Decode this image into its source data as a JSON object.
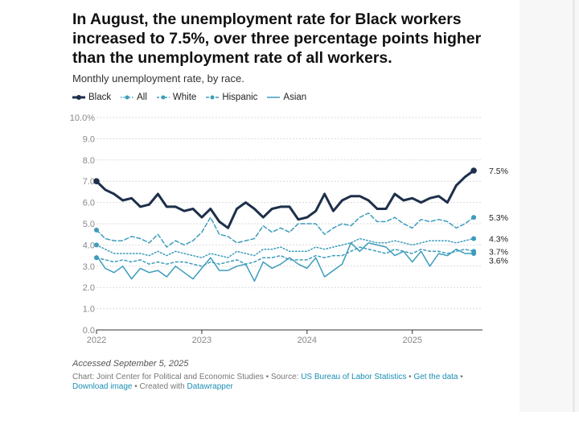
{
  "header": {
    "title": "In August, the unemployment rate for Black workers increased to 7.5%, over three percentage points higher than the unemployment rate of all workers.",
    "subtitle": "Monthly unemployment rate, by race."
  },
  "colors": {
    "Black": "#1d2f4a",
    "All": "#3d9cbc",
    "White": "#3d9cbc",
    "Hispanic": "#3d9cbc",
    "Asian": "#3d9cbc",
    "grid": "#d9d9d9",
    "axis": "#333333"
  },
  "chart_data": {
    "type": "line",
    "title": "Monthly unemployment rate, by race.",
    "xlabel": "",
    "ylabel": "",
    "ylim": [
      0,
      10
    ],
    "yticks": [
      "0.0",
      "1.0",
      "2.0",
      "3.0",
      "4.0",
      "5.0",
      "6.0",
      "7.0",
      "8.0",
      "9.0",
      "10.0%"
    ],
    "xticks": [
      {
        "label": "2022",
        "index": 0
      },
      {
        "label": "2023",
        "index": 12
      },
      {
        "label": "2024",
        "index": 24
      },
      {
        "label": "2025",
        "index": 36
      }
    ],
    "x_range": [
      0,
      44
    ],
    "legend_position": "top-left",
    "series": [
      {
        "name": "Black",
        "style": "solid-bold",
        "end_label": "7.5%",
        "values": [
          7.0,
          6.6,
          6.4,
          6.1,
          6.2,
          5.8,
          5.9,
          6.4,
          5.8,
          5.8,
          5.6,
          5.7,
          5.3,
          5.7,
          5.1,
          4.8,
          5.7,
          6.0,
          5.7,
          5.3,
          5.7,
          5.8,
          5.8,
          5.2,
          5.3,
          5.6,
          6.4,
          5.6,
          6.1,
          6.3,
          6.3,
          6.1,
          5.7,
          5.7,
          6.4,
          6.1,
          6.2,
          6.0,
          6.2,
          6.3,
          6.0,
          6.8,
          7.2,
          7.5
        ]
      },
      {
        "name": "All",
        "style": "dotted",
        "end_label": "4.3%",
        "values": [
          4.0,
          3.8,
          3.6,
          3.6,
          3.6,
          3.6,
          3.5,
          3.7,
          3.5,
          3.7,
          3.6,
          3.5,
          3.4,
          3.6,
          3.5,
          3.4,
          3.7,
          3.6,
          3.5,
          3.8,
          3.8,
          3.9,
          3.7,
          3.7,
          3.7,
          3.9,
          3.8,
          3.9,
          4.0,
          4.1,
          4.3,
          4.2,
          4.1,
          4.1,
          4.2,
          4.1,
          4.0,
          4.1,
          4.2,
          4.2,
          4.2,
          4.1,
          4.2,
          4.3
        ]
      },
      {
        "name": "White",
        "style": "dashed-small",
        "end_label": "3.7%",
        "values": [
          3.4,
          3.3,
          3.2,
          3.3,
          3.2,
          3.3,
          3.1,
          3.2,
          3.1,
          3.2,
          3.2,
          3.1,
          3.0,
          3.2,
          3.1,
          3.2,
          3.3,
          3.1,
          3.2,
          3.4,
          3.4,
          3.5,
          3.3,
          3.3,
          3.3,
          3.5,
          3.4,
          3.5,
          3.5,
          3.7,
          3.9,
          3.8,
          3.7,
          3.6,
          3.8,
          3.7,
          3.6,
          3.8,
          3.7,
          3.7,
          3.6,
          3.7,
          3.8,
          3.7
        ]
      },
      {
        "name": "Hispanic",
        "style": "dashed",
        "end_label": "5.3%",
        "values": [
          4.7,
          4.3,
          4.2,
          4.2,
          4.4,
          4.3,
          4.1,
          4.5,
          3.9,
          4.2,
          4.0,
          4.2,
          4.6,
          5.3,
          4.5,
          4.4,
          4.1,
          4.2,
          4.3,
          4.9,
          4.6,
          4.8,
          4.6,
          5.0,
          5.0,
          5.0,
          4.5,
          4.8,
          5.0,
          4.9,
          5.3,
          5.5,
          5.1,
          5.1,
          5.3,
          5.0,
          4.8,
          5.2,
          5.1,
          5.2,
          5.1,
          4.8,
          5.0,
          5.3
        ]
      },
      {
        "name": "Asian",
        "style": "solid-thin",
        "end_label": "3.6%",
        "values": [
          3.5,
          2.9,
          2.7,
          3.0,
          2.4,
          2.9,
          2.7,
          2.8,
          2.5,
          3.0,
          2.7,
          2.4,
          2.9,
          3.4,
          2.8,
          2.8,
          3.0,
          3.1,
          2.3,
          3.2,
          2.9,
          3.1,
          3.4,
          3.1,
          2.9,
          3.4,
          2.5,
          2.8,
          3.1,
          4.1,
          3.7,
          4.1,
          4.0,
          3.9,
          3.5,
          3.7,
          3.2,
          3.7,
          3.0,
          3.6,
          3.5,
          3.8,
          3.6,
          3.6
        ]
      }
    ]
  },
  "footer": {
    "accessed": "Accessed September 5, 2025",
    "chart_prefix": "Chart: Joint Center for Political and Economic Studies • Source: ",
    "source_link": "US Bureau of Labor Statistics",
    "sep1": " • ",
    "get_data": "Get the data",
    "sep2": " • ",
    "download_image": "Download image",
    "created_prefix": " • Created with ",
    "datawrapper": "Datawrapper"
  }
}
